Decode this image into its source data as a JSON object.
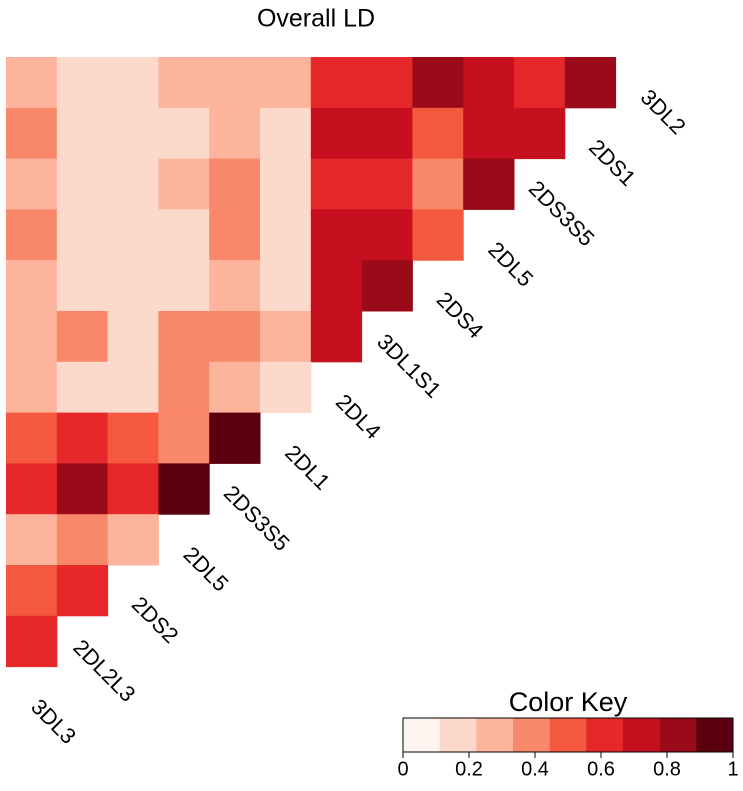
{
  "chart_data": {
    "type": "heatmap",
    "title": "Overall LD",
    "labels": [
      "3DL2",
      "2DS1",
      "2DS3S5",
      "2DL5",
      "2DS4",
      "3DL1S1",
      "2DL4",
      "2DL1",
      "2DS3S5",
      "2DL5",
      "2DS2",
      "2DL2L3",
      "3DL3"
    ],
    "values": [
      [
        0.28,
        0.15,
        0.15,
        0.28,
        0.28,
        0.28,
        0.61,
        0.61,
        0.83,
        0.72,
        0.61,
        0.83
      ],
      [
        0.39,
        0.15,
        0.15,
        0.15,
        0.28,
        0.15,
        0.72,
        0.72,
        0.5,
        0.72,
        0.72
      ],
      [
        0.28,
        0.15,
        0.15,
        0.28,
        0.39,
        0.15,
        0.61,
        0.61,
        0.39,
        0.83
      ],
      [
        0.39,
        0.15,
        0.15,
        0.15,
        0.39,
        0.15,
        0.72,
        0.72,
        0.5
      ],
      [
        0.28,
        0.15,
        0.15,
        0.15,
        0.28,
        0.15,
        0.72,
        0.83
      ],
      [
        0.28,
        0.39,
        0.15,
        0.39,
        0.39,
        0.28,
        0.72
      ],
      [
        0.28,
        0.15,
        0.15,
        0.39,
        0.28,
        0.15
      ],
      [
        0.5,
        0.61,
        0.5,
        0.39,
        0.94
      ],
      [
        0.61,
        0.83,
        0.61,
        0.94
      ],
      [
        0.28,
        0.39,
        0.28
      ],
      [
        0.5,
        0.61
      ],
      [
        0.61
      ]
    ],
    "colors": [
      "#FFF5F0",
      "#FDD9CB",
      "#FCB59C",
      "#F9876A",
      "#F4593F",
      "#E6282B",
      "#C6101F",
      "#9A0A18",
      "#5C0010"
    ],
    "color_key": {
      "title": "Color Key",
      "range": [
        0,
        1
      ],
      "ticks": [
        0,
        0.2,
        0.4,
        0.6,
        0.8,
        1
      ]
    }
  }
}
